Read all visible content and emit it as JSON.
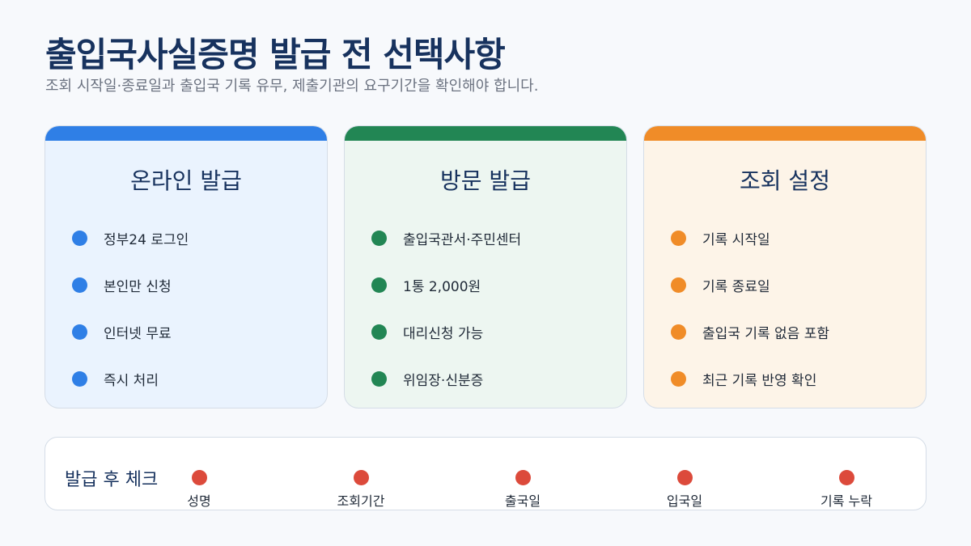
{
  "header": {
    "title": "출입국사실증명 발급 전 선택사항",
    "subtitle": "조회 시작일·종료일과 출입국 기록 유무, 제출기관의 요구기간을 확인해야 합니다."
  },
  "cards": [
    {
      "title": "온라인 발급",
      "accent": "#2f7fe6",
      "background": "#eaf3fe",
      "items": [
        "정부24 로그인",
        "본인만 신청",
        "인터넷 무료",
        "즉시 처리"
      ]
    },
    {
      "title": "방문 발급",
      "accent": "#228654",
      "background": "#edf6f1",
      "items": [
        "출입국관서·주민센터",
        "1통 2,000원",
        "대리신청 가능",
        "위임장·신분증"
      ]
    },
    {
      "title": "조회 설정",
      "accent": "#f08c28",
      "background": "#fdf4e8",
      "items": [
        "기록 시작일",
        "기록 종료일",
        "출입국 기록 없음 포함",
        "최근 기록 반영 확인"
      ]
    }
  ],
  "check": {
    "title": "발급 후 체크",
    "accent": "#dc4a3b",
    "items": [
      "성명",
      "조회기간",
      "출국일",
      "입국일",
      "기록 누락"
    ]
  }
}
